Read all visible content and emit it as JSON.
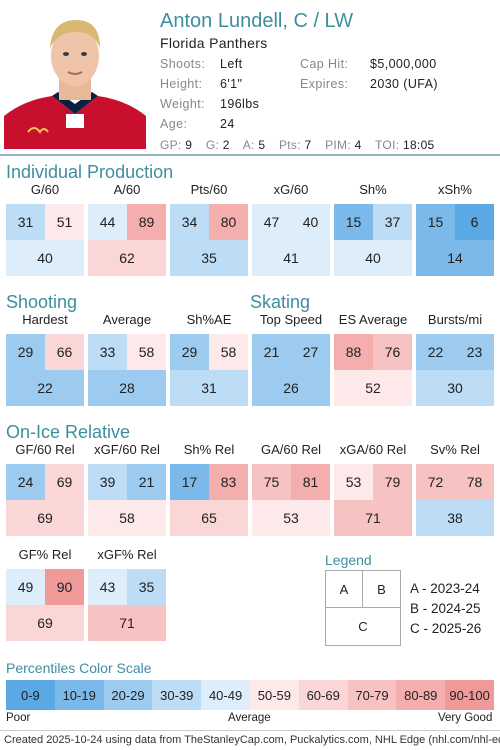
{
  "player": {
    "name": "Anton Lundell, C / LW",
    "team": "Florida Panthers",
    "shoots_label": "Shoots:",
    "shoots": "Left",
    "height_label": "Height:",
    "height": "6'1\"",
    "weight_label": "Weight:",
    "weight": "196lbs",
    "age_label": "Age:",
    "age": "24",
    "cap_label": "Cap Hit:",
    "cap": "$5,000,000",
    "expires_label": "Expires:",
    "expires": "2030 (UFA)"
  },
  "statline": [
    {
      "label": "GP:",
      "value": "9"
    },
    {
      "label": "G:",
      "value": "2"
    },
    {
      "label": "A:",
      "value": "5"
    },
    {
      "label": "Pts:",
      "value": "7"
    },
    {
      "label": "PIM:",
      "value": "4"
    },
    {
      "label": "TOI:",
      "value": "18:05"
    }
  ],
  "sections": {
    "individual": "Individual Production",
    "shooting": "Shooting",
    "skating": "Skating",
    "onice": "On-Ice Relative"
  },
  "stats": [
    {
      "title": "G/60",
      "a": 31,
      "b": 51,
      "c": 40
    },
    {
      "title": "A/60",
      "a": 44,
      "b": 89,
      "c": 62
    },
    {
      "title": "Pts/60",
      "a": 34,
      "b": 80,
      "c": 35
    },
    {
      "title": "xG/60",
      "a": 47,
      "b": 40,
      "c": 41
    },
    {
      "title": "Sh%",
      "a": 15,
      "b": 37,
      "c": 40
    },
    {
      "title": "xSh%",
      "a": 15,
      "b": 6,
      "c": 14
    },
    {
      "title": "Hardest",
      "a": 29,
      "b": 66,
      "c": 22
    },
    {
      "title": "Average",
      "a": 33,
      "b": 58,
      "c": 28
    },
    {
      "title": "Sh%AE",
      "a": 29,
      "b": 58,
      "c": 31
    },
    {
      "title": "Top Speed",
      "a": 21,
      "b": 27,
      "c": 26
    },
    {
      "title": "ES Average",
      "a": 88,
      "b": 76,
      "c": 52
    },
    {
      "title": "Bursts/mi",
      "a": 22,
      "b": 23,
      "c": 30
    },
    {
      "title": "GF/60 Rel",
      "a": 24,
      "b": 69,
      "c": 69
    },
    {
      "title": "xGF/60 Rel",
      "a": 39,
      "b": 21,
      "c": 58
    },
    {
      "title": "Sh% Rel",
      "a": 17,
      "b": 83,
      "c": 65
    },
    {
      "title": "GA/60 Rel",
      "a": 75,
      "b": 81,
      "c": 53
    },
    {
      "title": "xGA/60 Rel",
      "a": 53,
      "b": 79,
      "c": 71
    },
    {
      "title": "Sv% Rel",
      "a": 72,
      "b": 78,
      "c": 38
    },
    {
      "title": "GF% Rel",
      "a": 49,
      "b": 90,
      "c": 69
    },
    {
      "title": "xGF% Rel",
      "a": 43,
      "b": 35,
      "c": 71
    }
  ],
  "legend": {
    "title": "Legend",
    "a": "A",
    "b": "B",
    "c": "C",
    "a_text": "A - 2023-24",
    "b_text": "B - 2024-25",
    "c_text": "C - 2025-26"
  },
  "scale": {
    "title": "Percentiles Color Scale",
    "segments": [
      "0-9",
      "10-19",
      "20-29",
      "30-39",
      "40-49",
      "50-59",
      "60-69",
      "70-79",
      "80-89",
      "90-100"
    ],
    "colors": [
      "#5aa8e4",
      "#7ab9ea",
      "#9ccbef",
      "#bddcf5",
      "#ddedfa",
      "#fde9e9",
      "#fad6d6",
      "#f7c2c2",
      "#f4aeae",
      "#f09999"
    ],
    "poor": "Poor",
    "average": "Average",
    "very_good": "Very Good"
  },
  "footer": "Created 2025-10-24 using data from TheStanleyCap.com, Puckalytics.com, NHL Edge (nhl.com/nhl-edge)."
}
